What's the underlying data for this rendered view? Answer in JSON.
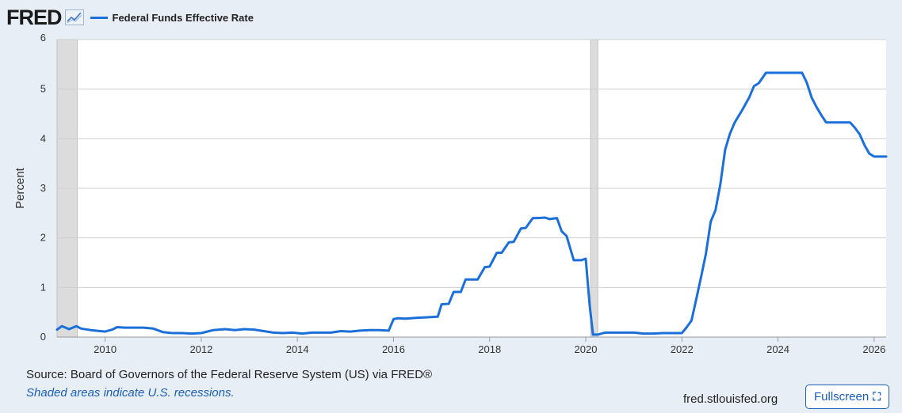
{
  "header": {
    "logo": "FRED",
    "logo_icon": "trend-chart-icon"
  },
  "colors": {
    "series": "#1a6fd9",
    "recession": "#dcdcdc",
    "grid": "#cfcfcf",
    "accent": "#1a5fb4"
  },
  "footer": {
    "source": "Source: Board of Governors of the Federal Reserve System (US) via FRED®",
    "recession_note": "Shaded areas indicate U.S. recessions.",
    "site": "fred.stlouisfed.org",
    "fullscreen_label": "Fullscreen",
    "fullscreen_icon": "expand-icon"
  },
  "chart_data": {
    "type": "line",
    "title": "",
    "xlabel": "",
    "ylabel": "Percent",
    "xlim": [
      2009.0,
      2026.25
    ],
    "ylim": [
      0,
      6
    ],
    "yticks": [
      0,
      1,
      2,
      3,
      4,
      5,
      6
    ],
    "xticks": [
      "2010",
      "2012",
      "2014",
      "2016",
      "2018",
      "2020",
      "2022",
      "2024",
      "2026"
    ],
    "grid": true,
    "legend": "top-left",
    "recessions": [
      [
        2009.0,
        2009.42
      ],
      [
        2020.1,
        2020.25
      ]
    ],
    "series": [
      {
        "name": "Federal Funds Effective Rate",
        "x": [
          2009.0,
          2009.1,
          2009.25,
          2009.4,
          2009.5,
          2009.7,
          2009.9,
          2010.0,
          2010.15,
          2010.25,
          2010.4,
          2010.6,
          2010.8,
          2011.0,
          2011.2,
          2011.4,
          2011.6,
          2011.8,
          2012.0,
          2012.25,
          2012.5,
          2012.7,
          2012.9,
          2013.1,
          2013.3,
          2013.5,
          2013.7,
          2013.9,
          2014.1,
          2014.3,
          2014.5,
          2014.7,
          2014.9,
          2015.1,
          2015.3,
          2015.5,
          2015.7,
          2015.9,
          2016.0,
          2016.1,
          2016.25,
          2016.5,
          2016.75,
          2016.92,
          2017.0,
          2017.15,
          2017.25,
          2017.4,
          2017.5,
          2017.65,
          2017.75,
          2017.9,
          2018.0,
          2018.15,
          2018.25,
          2018.4,
          2018.5,
          2018.65,
          2018.75,
          2018.9,
          2019.0,
          2019.15,
          2019.25,
          2019.4,
          2019.5,
          2019.6,
          2019.75,
          2019.9,
          2020.0,
          2020.08,
          2020.15,
          2020.25,
          2020.4,
          2020.6,
          2020.8,
          2021.0,
          2021.2,
          2021.4,
          2021.6,
          2021.8,
          2022.0,
          2022.1,
          2022.2,
          2022.3,
          2022.4,
          2022.5,
          2022.6,
          2022.7,
          2022.8,
          2022.9,
          2023.0,
          2023.1,
          2023.25,
          2023.4,
          2023.5,
          2023.6,
          2023.75,
          2024.0,
          2024.25,
          2024.5,
          2024.6,
          2024.7,
          2024.8,
          2024.9,
          2025.0,
          2025.25,
          2025.5,
          2025.6,
          2025.7,
          2025.8,
          2025.9,
          2026.0,
          2026.25
        ],
        "values": [
          0.15,
          0.22,
          0.16,
          0.22,
          0.17,
          0.14,
          0.12,
          0.11,
          0.15,
          0.2,
          0.19,
          0.19,
          0.19,
          0.17,
          0.1,
          0.08,
          0.08,
          0.07,
          0.08,
          0.14,
          0.16,
          0.14,
          0.16,
          0.15,
          0.12,
          0.09,
          0.08,
          0.09,
          0.07,
          0.09,
          0.09,
          0.09,
          0.12,
          0.11,
          0.13,
          0.14,
          0.14,
          0.13,
          0.36,
          0.38,
          0.37,
          0.39,
          0.4,
          0.41,
          0.66,
          0.67,
          0.91,
          0.91,
          1.16,
          1.16,
          1.16,
          1.41,
          1.42,
          1.7,
          1.7,
          1.91,
          1.92,
          2.19,
          2.2,
          2.4,
          2.4,
          2.41,
          2.38,
          2.4,
          2.13,
          2.04,
          1.55,
          1.55,
          1.58,
          0.65,
          0.05,
          0.05,
          0.09,
          0.09,
          0.09,
          0.09,
          0.07,
          0.07,
          0.08,
          0.08,
          0.08,
          0.2,
          0.33,
          0.77,
          1.21,
          1.68,
          2.33,
          2.56,
          3.08,
          3.78,
          4.1,
          4.33,
          4.57,
          4.83,
          5.06,
          5.12,
          5.33,
          5.33,
          5.33,
          5.33,
          5.13,
          4.83,
          4.64,
          4.48,
          4.33,
          4.33,
          4.33,
          4.22,
          4.09,
          3.87,
          3.7,
          3.64,
          3.64
        ]
      }
    ]
  }
}
